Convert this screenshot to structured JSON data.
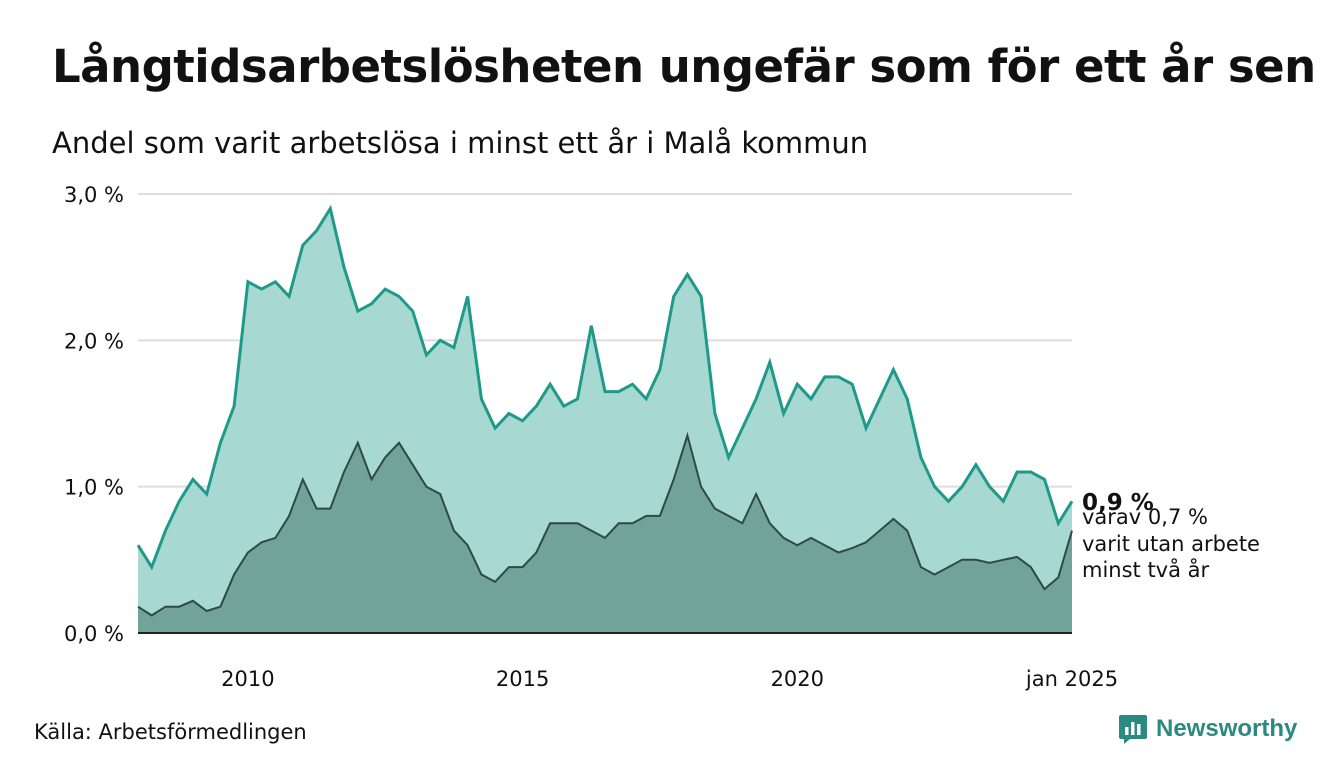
{
  "header": {
    "title": "Långtidsarbetslösheten ungefär som för ett år sen",
    "subtitle": "Andel som varit arbetslösa i minst ett år i Malå kommun"
  },
  "footer": {
    "source": "Källa: Arbetsförmedlingen",
    "brand": "Newsworthy"
  },
  "chart_data": {
    "type": "area",
    "grid": true,
    "y_ticks": [
      "0,0 %",
      "1,0 %",
      "2,0 %",
      "3,0 %"
    ],
    "y_tick_values": [
      0,
      1,
      2,
      3
    ],
    "x_ticks": [
      "2010",
      "2015",
      "2020",
      "jan 2025"
    ],
    "x_tick_values": [
      2010,
      2015,
      2020,
      2025
    ],
    "xlim": [
      2008,
      2025
    ],
    "ylim": [
      0,
      3
    ],
    "end_label": {
      "value": "0,9 %",
      "lines": [
        "varav 0,7 %",
        "varit utan arbete",
        "minst två år"
      ]
    },
    "colors": {
      "outer_fill": "#a8d8d2",
      "outer_line": "#1f9a8a",
      "inner_fill": "#72a398",
      "inner_line": "#2f4a44",
      "grid": "#dddddd",
      "axis": "#222222"
    },
    "series": [
      {
        "key": "minst_ett_ar",
        "x": [
          2008.0,
          2008.25,
          2008.5,
          2008.75,
          2009.0,
          2009.25,
          2009.5,
          2009.75,
          2010.0,
          2010.25,
          2010.5,
          2010.75,
          2011.0,
          2011.25,
          2011.5,
          2011.75,
          2012.0,
          2012.25,
          2012.5,
          2012.75,
          2013.0,
          2013.25,
          2013.5,
          2013.75,
          2014.0,
          2014.25,
          2014.5,
          2014.75,
          2015.0,
          2015.25,
          2015.5,
          2015.75,
          2016.0,
          2016.25,
          2016.5,
          2016.75,
          2017.0,
          2017.25,
          2017.5,
          2017.75,
          2018.0,
          2018.25,
          2018.5,
          2018.75,
          2019.0,
          2019.25,
          2019.5,
          2019.75,
          2020.0,
          2020.25,
          2020.5,
          2020.75,
          2021.0,
          2021.25,
          2021.5,
          2021.75,
          2022.0,
          2022.25,
          2022.5,
          2022.75,
          2023.0,
          2023.25,
          2023.5,
          2023.75,
          2024.0,
          2024.25,
          2024.5,
          2024.75,
          2025.0
        ],
        "values": [
          0.6,
          0.45,
          0.7,
          0.9,
          1.05,
          0.95,
          1.3,
          1.55,
          2.4,
          2.35,
          2.4,
          2.3,
          2.65,
          2.75,
          2.9,
          2.5,
          2.2,
          2.25,
          2.35,
          2.3,
          2.2,
          1.9,
          2.0,
          1.95,
          2.3,
          1.6,
          1.4,
          1.5,
          1.45,
          1.55,
          1.7,
          1.55,
          1.6,
          2.1,
          1.65,
          1.65,
          1.7,
          1.6,
          1.8,
          2.3,
          2.45,
          2.3,
          1.5,
          1.2,
          1.4,
          1.6,
          1.85,
          1.5,
          1.7,
          1.6,
          1.75,
          1.75,
          1.7,
          1.4,
          1.6,
          1.8,
          1.6,
          1.2,
          1.0,
          0.9,
          1.0,
          1.15,
          1.0,
          0.9,
          1.1,
          1.1,
          1.05,
          0.75,
          0.9
        ]
      },
      {
        "key": "minst_tva_ar",
        "x": [
          2008.0,
          2008.25,
          2008.5,
          2008.75,
          2009.0,
          2009.25,
          2009.5,
          2009.75,
          2010.0,
          2010.25,
          2010.5,
          2010.75,
          2011.0,
          2011.25,
          2011.5,
          2011.75,
          2012.0,
          2012.25,
          2012.5,
          2012.75,
          2013.0,
          2013.25,
          2013.5,
          2013.75,
          2014.0,
          2014.25,
          2014.5,
          2014.75,
          2015.0,
          2015.25,
          2015.5,
          2015.75,
          2016.0,
          2016.25,
          2016.5,
          2016.75,
          2017.0,
          2017.25,
          2017.5,
          2017.75,
          2018.0,
          2018.25,
          2018.5,
          2018.75,
          2019.0,
          2019.25,
          2019.5,
          2019.75,
          2020.0,
          2020.25,
          2020.5,
          2020.75,
          2021.0,
          2021.25,
          2021.5,
          2021.75,
          2022.0,
          2022.25,
          2022.5,
          2022.75,
          2023.0,
          2023.25,
          2023.5,
          2023.75,
          2024.0,
          2024.25,
          2024.5,
          2024.75,
          2025.0
        ],
        "values": [
          0.18,
          0.12,
          0.18,
          0.18,
          0.22,
          0.15,
          0.18,
          0.4,
          0.55,
          0.62,
          0.65,
          0.8,
          1.05,
          0.85,
          0.85,
          1.1,
          1.3,
          1.05,
          1.2,
          1.3,
          1.15,
          1.0,
          0.95,
          0.7,
          0.6,
          0.4,
          0.35,
          0.45,
          0.45,
          0.55,
          0.75,
          0.75,
          0.75,
          0.7,
          0.65,
          0.75,
          0.75,
          0.8,
          0.8,
          1.05,
          1.35,
          1.0,
          0.85,
          0.8,
          0.75,
          0.95,
          0.75,
          0.65,
          0.6,
          0.65,
          0.6,
          0.55,
          0.58,
          0.62,
          0.7,
          0.78,
          0.7,
          0.45,
          0.4,
          0.45,
          0.5,
          0.5,
          0.48,
          0.5,
          0.52,
          0.45,
          0.3,
          0.38,
          0.7
        ]
      }
    ]
  }
}
